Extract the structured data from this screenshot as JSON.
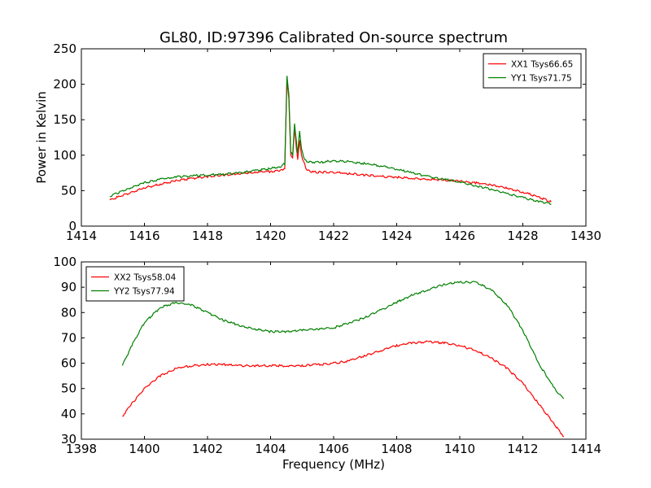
{
  "figure": {
    "title": "GL80, ID:97396 Calibrated On-source spectrum"
  },
  "chart_data": [
    {
      "type": "line",
      "title": "GL80, ID:97396 Calibrated On-source spectrum",
      "xlabel": "",
      "ylabel": "Power in Kelvin",
      "xlim": [
        1414,
        1430
      ],
      "ylim": [
        0,
        250
      ],
      "xticks": [
        1414,
        1416,
        1418,
        1420,
        1422,
        1424,
        1426,
        1428,
        1430
      ],
      "yticks": [
        0,
        50,
        100,
        150,
        200,
        250
      ],
      "grid": false,
      "legend_position": "upper right",
      "series": [
        {
          "name": "XX1 Tsys66.65",
          "color": "#ff0000",
          "x": [
            1414.9,
            1415.5,
            1416.0,
            1416.5,
            1417.0,
            1417.5,
            1418.0,
            1418.5,
            1419.0,
            1419.5,
            1420.0,
            1420.3,
            1420.45,
            1420.52,
            1420.58,
            1420.64,
            1420.7,
            1420.76,
            1420.82,
            1420.86,
            1420.92,
            1420.98,
            1421.05,
            1421.15,
            1421.3,
            1421.6,
            1422.0,
            1422.5,
            1423.0,
            1423.5,
            1424.0,
            1424.5,
            1425.0,
            1425.5,
            1426.0,
            1426.5,
            1427.0,
            1427.5,
            1428.0,
            1428.5,
            1428.9
          ],
          "y": [
            37,
            46,
            54,
            59,
            64,
            67,
            70,
            72,
            74,
            76,
            77,
            78,
            82,
            207,
            180,
            100,
            96,
            138,
            110,
            95,
            122,
            100,
            90,
            79,
            76,
            76,
            76,
            74,
            72,
            70,
            69,
            67,
            66,
            65,
            63,
            61,
            58,
            54,
            48,
            41,
            34
          ]
        },
        {
          "name": "YY1 Tsys71.75",
          "color": "#008000",
          "x": [
            1414.9,
            1415.5,
            1416.0,
            1416.5,
            1417.0,
            1417.5,
            1418.0,
            1418.5,
            1419.0,
            1419.5,
            1420.0,
            1420.3,
            1420.45,
            1420.52,
            1420.58,
            1420.64,
            1420.7,
            1420.76,
            1420.82,
            1420.86,
            1420.92,
            1420.98,
            1421.05,
            1421.15,
            1421.3,
            1421.6,
            1422.0,
            1422.5,
            1423.0,
            1423.5,
            1424.0,
            1424.5,
            1425.0,
            1425.5,
            1426.0,
            1426.5,
            1427.0,
            1427.5,
            1428.0,
            1428.5,
            1428.9
          ],
          "y": [
            42,
            53,
            61,
            66,
            69,
            71,
            72,
            73,
            75,
            78,
            81,
            84,
            88,
            211,
            185,
            105,
            100,
            145,
            118,
            102,
            133,
            110,
            97,
            91,
            90,
            90,
            92,
            91,
            88,
            85,
            80,
            75,
            70,
            66,
            62,
            57,
            52,
            46,
            40,
            35,
            31
          ]
        }
      ]
    },
    {
      "type": "line",
      "title": "",
      "xlabel": "Frequency (MHz)",
      "ylabel": "",
      "xlim": [
        1398,
        1414
      ],
      "ylim": [
        30,
        100
      ],
      "xticks": [
        1398,
        1400,
        1402,
        1404,
        1406,
        1408,
        1410,
        1412,
        1414
      ],
      "yticks": [
        30,
        40,
        50,
        60,
        70,
        80,
        90,
        100
      ],
      "grid": false,
      "legend_position": "upper left",
      "series": [
        {
          "name": "XX2 Tsys58.04",
          "color": "#ff0000",
          "x": [
            1399.3,
            1399.6,
            1400.0,
            1400.5,
            1401.0,
            1401.5,
            1402.0,
            1402.5,
            1403.0,
            1403.5,
            1404.0,
            1404.5,
            1405.0,
            1405.5,
            1406.0,
            1406.5,
            1407.0,
            1407.5,
            1408.0,
            1408.5,
            1409.0,
            1409.5,
            1410.0,
            1410.5,
            1411.0,
            1411.5,
            1412.0,
            1412.5,
            1413.0,
            1413.3
          ],
          "y": [
            39,
            44,
            50,
            55,
            58,
            59,
            59.5,
            59.5,
            59,
            59,
            59,
            59,
            59,
            59.5,
            60,
            61,
            63,
            65,
            67,
            68,
            68.5,
            68,
            67,
            65,
            62,
            58,
            52,
            44,
            36,
            31
          ]
        },
        {
          "name": "YY2 Tsys77.94",
          "color": "#008000",
          "x": [
            1399.3,
            1399.6,
            1400.0,
            1400.5,
            1401.0,
            1401.5,
            1402.0,
            1402.5,
            1403.0,
            1403.5,
            1404.0,
            1404.5,
            1405.0,
            1405.5,
            1406.0,
            1406.5,
            1407.0,
            1407.5,
            1408.0,
            1408.5,
            1409.0,
            1409.5,
            1410.0,
            1410.5,
            1411.0,
            1411.5,
            1412.0,
            1412.5,
            1413.0,
            1413.3
          ],
          "y": [
            59,
            67,
            76,
            82,
            84,
            83,
            80,
            77,
            75,
            73.5,
            72.5,
            72.5,
            73,
            73.5,
            74,
            76,
            78,
            81,
            84,
            87,
            89,
            91,
            92,
            92,
            89,
            83,
            73,
            60,
            50,
            46
          ]
        }
      ]
    }
  ]
}
